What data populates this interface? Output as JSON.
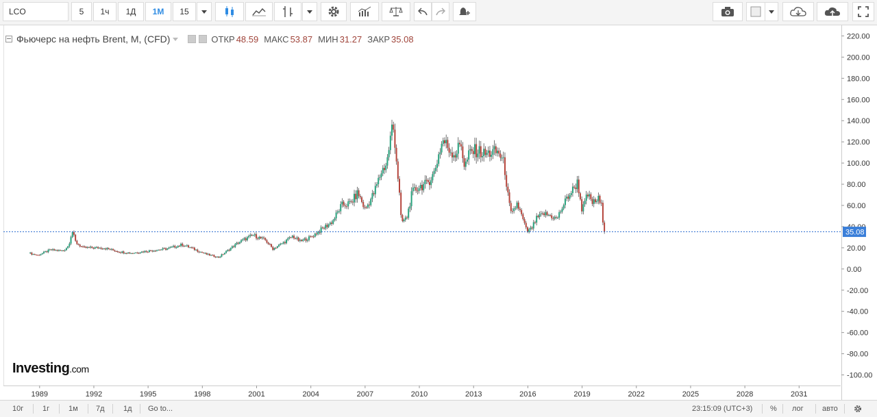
{
  "toolbar": {
    "symbol": "LCO",
    "intervals": [
      "5",
      "1ч",
      "1Д",
      "1М",
      "15"
    ],
    "active_interval": "1М"
  },
  "legend": {
    "title": "Фьючерс на нефть Brent, M, (CFD)",
    "open_label": "ОТКР",
    "open": "48.59",
    "high_label": "МАКС",
    "high": "53.87",
    "low_label": "МИН",
    "low": "31.27",
    "close_label": "ЗАКР",
    "close": "35.08"
  },
  "logo": {
    "brand": "Investing",
    "suffix": ".com"
  },
  "bottom": {
    "ranges": [
      "10г",
      "1г",
      "1м",
      "7д",
      "1д"
    ],
    "goto": "Go to...",
    "time": "23:15:09 (UTC+3)",
    "percent": "%",
    "log": "лог",
    "auto": "авто"
  },
  "colors": {
    "up": "#26a17c",
    "down": "#b5443b",
    "price_line": "#2f6fd1",
    "price_tag": "#3b7fd9"
  },
  "chart_data": {
    "type": "candlestick",
    "title": "Фьючерс на нефть Brent, M, (CFD)",
    "ylim": [
      -110,
      230
    ],
    "yticks": [
      220,
      200,
      180,
      160,
      140,
      120,
      100,
      80,
      60,
      40,
      20,
      0,
      -20,
      -40,
      -60,
      -80,
      -100
    ],
    "xlim": [
      1987.0,
      2033.3
    ],
    "xticks": [
      1989,
      1992,
      1995,
      1998,
      2001,
      2004,
      2007,
      2010,
      2013,
      2016,
      2019,
      2022,
      2025,
      2028,
      2031
    ],
    "last_price": 35.08,
    "last_price_label": "35.08",
    "price_anchors": [
      [
        1988.4,
        15
      ],
      [
        1988.9,
        13
      ],
      [
        1989.6,
        18
      ],
      [
        1990.3,
        17
      ],
      [
        1990.6,
        22
      ],
      [
        1990.8,
        36
      ],
      [
        1991.0,
        25
      ],
      [
        1991.4,
        20
      ],
      [
        1992.5,
        20
      ],
      [
        1993.5,
        16
      ],
      [
        1994.1,
        15
      ],
      [
        1995.0,
        17
      ],
      [
        1996.0,
        19
      ],
      [
        1996.9,
        23
      ],
      [
        1997.5,
        19
      ],
      [
        1998.2,
        14
      ],
      [
        1998.9,
        11
      ],
      [
        1999.6,
        20
      ],
      [
        2000.0,
        25
      ],
      [
        2000.8,
        32
      ],
      [
        2001.5,
        27
      ],
      [
        2001.9,
        19
      ],
      [
        2002.5,
        25
      ],
      [
        2003.0,
        31
      ],
      [
        2003.4,
        26
      ],
      [
        2004.0,
        30
      ],
      [
        2004.8,
        40
      ],
      [
        2005.2,
        45
      ],
      [
        2005.7,
        60
      ],
      [
        2006.2,
        62
      ],
      [
        2006.6,
        72
      ],
      [
        2007.0,
        56
      ],
      [
        2007.5,
        72
      ],
      [
        2007.9,
        92
      ],
      [
        2008.2,
        100
      ],
      [
        2008.5,
        135
      ],
      [
        2008.6,
        130
      ],
      [
        2008.9,
        70
      ],
      [
        2009.0,
        44
      ],
      [
        2009.3,
        48
      ],
      [
        2009.6,
        72
      ],
      [
        2010.0,
        78
      ],
      [
        2010.4,
        80
      ],
      [
        2010.8,
        90
      ],
      [
        2011.1,
        110
      ],
      [
        2011.3,
        122
      ],
      [
        2011.7,
        112
      ],
      [
        2012.0,
        108
      ],
      [
        2012.3,
        120
      ],
      [
        2012.5,
        96
      ],
      [
        2012.8,
        110
      ],
      [
        2013.2,
        112
      ],
      [
        2013.6,
        108
      ],
      [
        2014.0,
        110
      ],
      [
        2014.4,
        110
      ],
      [
        2014.7,
        98
      ],
      [
        2014.95,
        62
      ],
      [
        2015.1,
        50
      ],
      [
        2015.4,
        62
      ],
      [
        2015.7,
        48
      ],
      [
        2015.95,
        35
      ],
      [
        2016.2,
        38
      ],
      [
        2016.5,
        48
      ],
      [
        2016.9,
        52
      ],
      [
        2017.3,
        50
      ],
      [
        2017.6,
        47
      ],
      [
        2017.9,
        58
      ],
      [
        2018.2,
        68
      ],
      [
        2018.5,
        75
      ],
      [
        2018.75,
        82
      ],
      [
        2019.0,
        55
      ],
      [
        2019.3,
        70
      ],
      [
        2019.6,
        62
      ],
      [
        2019.9,
        66
      ],
      [
        2020.1,
        58
      ],
      [
        2020.2,
        35.08
      ]
    ]
  }
}
